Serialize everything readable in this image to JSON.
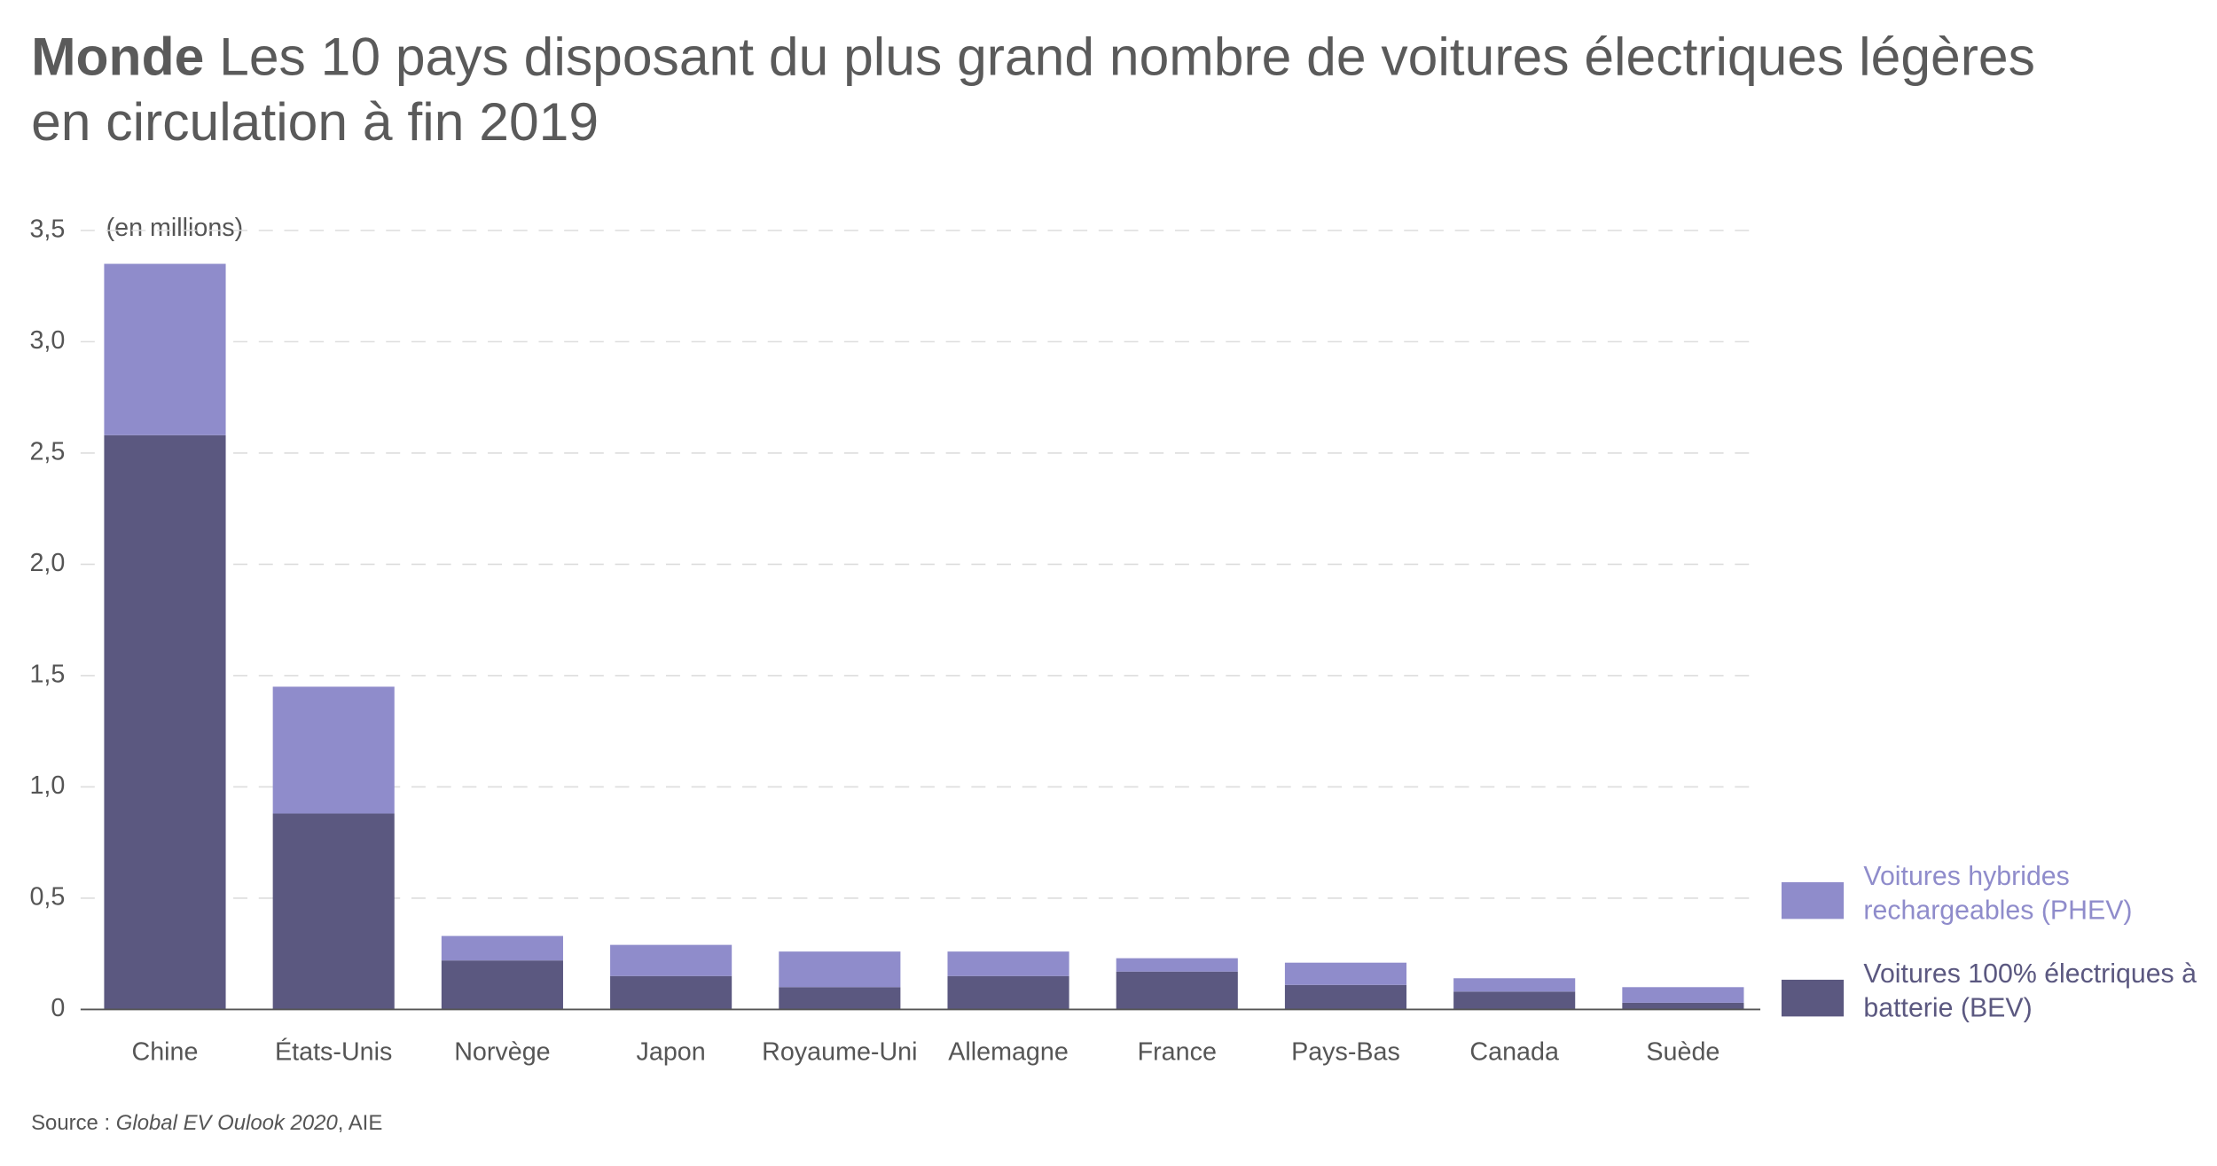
{
  "chart_data": {
    "type": "stacked_bar",
    "title_bold": "Monde",
    "title": "Les 10 pays disposant du plus grand nombre de voitures électriques légères en circulation à fin 2019",
    "y_label": "(en millions)",
    "source": [
      "Source : ",
      "Global EV Oulook 2020",
      ", AIE"
    ],
    "categories": [
      "Chine",
      "États-Unis",
      "Norvège",
      "Japon",
      "Royaume-Uni",
      "Allemagne",
      "France",
      "Pays-Bas",
      "Canada",
      "Suède"
    ],
    "series": [
      {
        "name": "Voitures 100% électriques à batterie (BEV)",
        "color": "#5b5880",
        "values": [
          2.58,
          0.88,
          0.22,
          0.15,
          0.1,
          0.15,
          0.17,
          0.11,
          0.08,
          0.03
        ]
      },
      {
        "name": "Voitures hybrides rechargeables (PHEV)",
        "color": "#8f8ccb",
        "values": [
          0.77,
          0.57,
          0.11,
          0.14,
          0.16,
          0.11,
          0.06,
          0.1,
          0.06,
          0.07
        ]
      }
    ],
    "ylim": [
      0,
      3.5
    ],
    "yticks": [
      0,
      {
        "value": 0.5,
        "label": "0,5"
      },
      {
        "value": 1,
        "label": "1,0"
      },
      {
        "value": 1.5,
        "label": "1,5"
      },
      {
        "value": 2,
        "label": "2,0"
      },
      {
        "value": 2.5,
        "label": "2,5"
      },
      {
        "value": 3,
        "label": "3,0"
      },
      {
        "value": 3.5,
        "label": "3,5"
      }
    ],
    "grid": true
  }
}
